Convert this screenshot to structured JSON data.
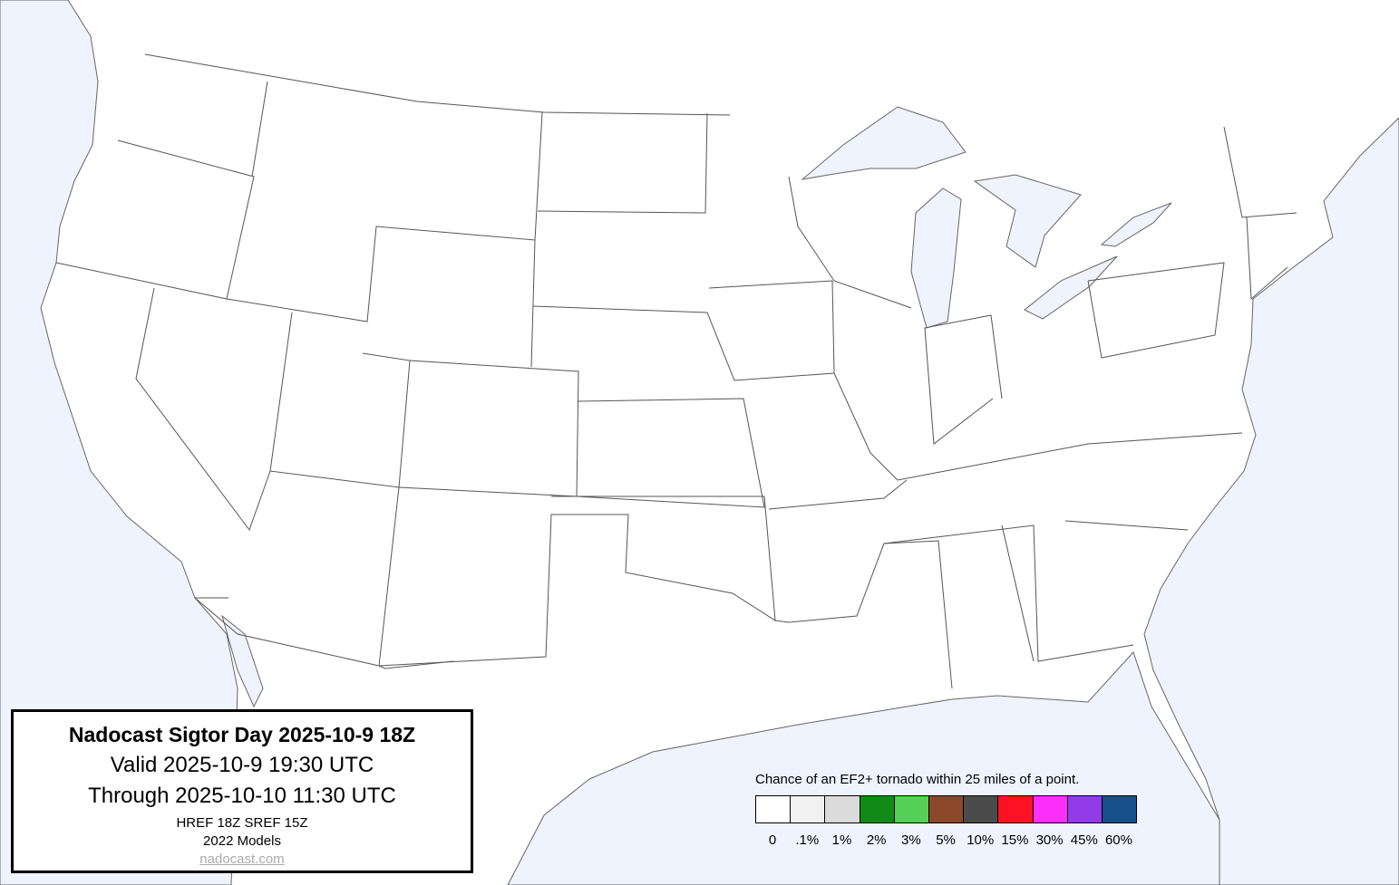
{
  "title_box": {
    "title": "Nadocast Sigtor Day 2025-10-9 18Z",
    "valid": "Valid 2025-10-9 19:30 UTC",
    "through": "Through 2025-10-10 11:30 UTC",
    "models_run": "HREF 18Z SREF 15Z",
    "models_version": "2022 Models",
    "link": "nadocast.com"
  },
  "legend": {
    "title": "Chance of an EF2+ tornado within 25 miles of a point.",
    "items": [
      {
        "label": "0",
        "color": "#ffffff"
      },
      {
        "label": ".1%",
        "color": "#f1f1f1"
      },
      {
        "label": "1%",
        "color": "#dbdbdb"
      },
      {
        "label": "2%",
        "color": "#128a17"
      },
      {
        "label": "3%",
        "color": "#55d157"
      },
      {
        "label": "5%",
        "color": "#8b482b"
      },
      {
        "label": "10%",
        "color": "#4b4b4b"
      },
      {
        "label": "15%",
        "color": "#fd1223"
      },
      {
        "label": "30%",
        "color": "#fd2ffd"
      },
      {
        "label": "45%",
        "color": "#923ce8"
      },
      {
        "label": "60%",
        "color": "#165089"
      }
    ]
  },
  "map": {
    "water_color": "#eef3fe",
    "land_color": "#ffffff",
    "border_color": "#555555"
  }
}
